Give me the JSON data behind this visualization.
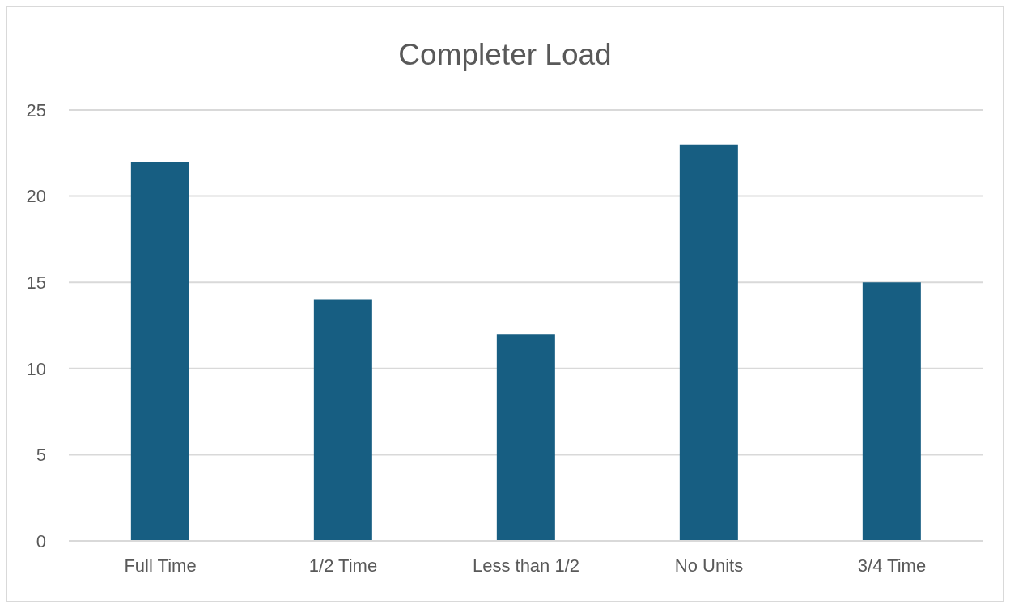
{
  "chart_data": {
    "type": "bar",
    "title": "Completer Load",
    "categories": [
      "Full Time",
      "1/2 Time",
      "Less than 1/2",
      "No Units",
      "3/4 Time"
    ],
    "values": [
      22,
      14,
      12,
      23,
      15
    ],
    "color": "#175e82",
    "ylim": [
      0,
      25
    ],
    "yticks": [
      0,
      5,
      10,
      15,
      20,
      25
    ],
    "grid": "y"
  }
}
